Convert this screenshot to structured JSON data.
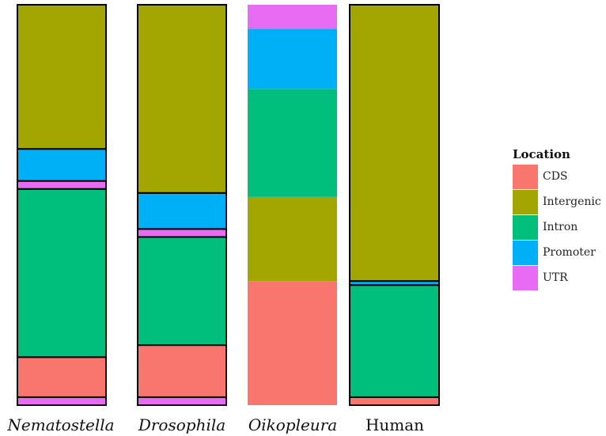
{
  "chart_data": {
    "type": "bar",
    "stacked": true,
    "normalized": true,
    "categories": [
      "Nematostella",
      "Drosophila",
      "Oikopleura",
      "Human"
    ],
    "category_italic": [
      true,
      true,
      true,
      false
    ],
    "series": [
      {
        "name": "UTR",
        "color": "#E76BF3",
        "values": [
          0.02,
          0.02,
          0.06,
          0.0
        ]
      },
      {
        "name": "Promoter",
        "color": "#00B0F6",
        "values": [
          0.08,
          0.09,
          0.15,
          0.01
        ]
      },
      {
        "name": "Intergenic",
        "color": "#A3A500",
        "values": [
          0.36,
          0.47,
          0.21,
          0.69
        ]
      },
      {
        "name": "Intron",
        "color": "#00BF7D",
        "values": [
          0.42,
          0.27,
          0.27,
          0.28
        ]
      },
      {
        "name": "CDS",
        "color": "#F8766D",
        "values": [
          0.1,
          0.13,
          0.31,
          0.02
        ]
      }
    ],
    "stack_order": [
      [
        "UTR",
        "CDS",
        "Intron",
        "UTR",
        "Promoter",
        "Intergenic"
      ],
      [
        "UTR",
        "CDS",
        "Intron",
        "UTR",
        "Promoter",
        "Intergenic"
      ],
      [
        "CDS",
        "Intergenic",
        "Intron",
        "Promoter",
        "UTR"
      ],
      [
        "CDS",
        "Intron",
        "Promoter",
        "Intergenic"
      ]
    ],
    "segments": [
      [
        [
          "UTR",
          0.02
        ],
        [
          "CDS",
          0.1
        ],
        [
          "Intron",
          0.42
        ],
        [
          "UTR",
          0.02
        ],
        [
          "Promoter",
          0.08
        ],
        [
          "Intergenic",
          0.36
        ]
      ],
      [
        [
          "UTR",
          0.02
        ],
        [
          "CDS",
          0.13
        ],
        [
          "Intron",
          0.27
        ],
        [
          "UTR",
          0.02
        ],
        [
          "Promoter",
          0.09
        ],
        [
          "Intergenic",
          0.47
        ]
      ],
      [
        [
          "CDS",
          0.31
        ],
        [
          "Intergenic",
          0.21
        ],
        [
          "Intron",
          0.27
        ],
        [
          "Promoter",
          0.15
        ],
        [
          "UTR",
          0.06
        ]
      ],
      [
        [
          "CDS",
          0.02
        ],
        [
          "Intron",
          0.28
        ],
        [
          "Promoter",
          0.01
        ],
        [
          "Intergenic",
          0.69
        ]
      ]
    ],
    "outlined": [
      true,
      true,
      false,
      true
    ],
    "ylim": [
      0,
      1
    ],
    "legend": {
      "title": "Location",
      "position": "right",
      "entries": [
        "CDS",
        "Intergenic",
        "Intron",
        "Promoter",
        "UTR"
      ]
    }
  }
}
